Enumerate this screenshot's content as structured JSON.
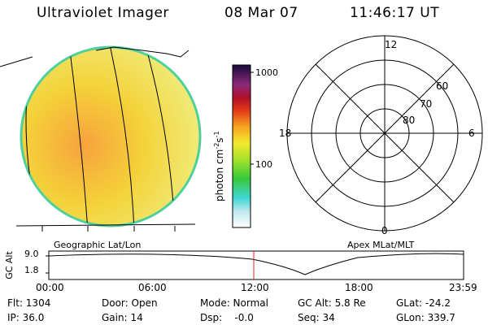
{
  "header": {
    "instrument": "Ultraviolet Imager",
    "date": "08 Mar 07",
    "time": "11:46:17 UT"
  },
  "colorbar": {
    "unit_label": "photon cm",
    "unit_sup1": "-2",
    "unit_s": "s",
    "unit_sup2": "-1",
    "tick_1000": "1000",
    "tick_100": "100"
  },
  "polar": {
    "lat_60": "60",
    "lat_70": "70",
    "lat_80": "80",
    "mlt_12": "12",
    "mlt_18": "18",
    "mlt_6": "6",
    "mlt_0": "0"
  },
  "panels": {
    "left_caption": "Geographic Lat/Lon",
    "right_caption": "Apex MLat/MLT"
  },
  "altitude_plot": {
    "ylabel": "GC Alt",
    "ytick_high": "9.0",
    "ytick_low": "1.8",
    "xticks": [
      "00:00",
      "06:00",
      "12:00",
      "18:00",
      "23:59"
    ]
  },
  "info": {
    "flt": "Flt: 1304",
    "ip": "IP: 36.0",
    "door": "Door: Open",
    "gain": "Gain: 14",
    "mode": "Mode: Normal",
    "dsp": "Dsp:    -0.0",
    "gcalt": "GC Alt: 5.8 Re",
    "seq": "Seq: 34",
    "glat": "GLat: -24.2",
    "glon": "GLon: 339.7"
  },
  "colors": {
    "disk_fill": "#f2e23a",
    "disk_edge": "#4fcf9a",
    "marker": "#e02020"
  }
}
